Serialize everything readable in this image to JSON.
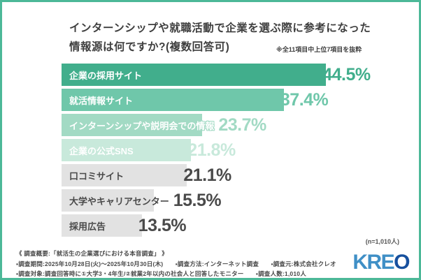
{
  "title": {
    "line1": "インターンシップや就職活動で企業を選ぶ際に参考になった",
    "line2": "情報源は何ですか?(複数回答可)",
    "note": "※全11項目中上位7項目を抜粋"
  },
  "chart_data": {
    "type": "bar",
    "orientation": "horizontal",
    "title": "インターンシップや就職活動で企業を選ぶ際に参考になった情報源は何ですか?(複数回答可)",
    "unit": "%",
    "xlim": [
      0,
      47
    ],
    "grid": false,
    "legend": "none",
    "categories": [
      "企業の採用サイト",
      "就活情報サイト",
      "インターンシップや説明会での情報",
      "企業の公式SNS",
      "口コミサイト",
      "大学やキャリアセンター",
      "採用広告"
    ],
    "values": [
      44.5,
      37.4,
      23.7,
      21.8,
      21.1,
      15.5,
      13.5
    ],
    "items": [
      {
        "label": "企業の採用サイト",
        "value": 44.5,
        "display": "44.5%",
        "bar_color": "#41AE8C",
        "value_color": "#41AE8C",
        "label_color": "#FFFFFF",
        "outlined": false
      },
      {
        "label": "就活情報サイト",
        "value": 37.4,
        "display": "37.4%",
        "bar_color": "#6FC7AA",
        "value_color": "#6FC7AA",
        "label_color": "#FFFFFF",
        "outlined": false
      },
      {
        "label": "インターンシップや説明会での情報",
        "value": 23.7,
        "display": "23.7%",
        "bar_color": "#A2DAC4",
        "value_color": "#A2DAC4",
        "label_color": "#FFFFFF",
        "outlined": true
      },
      {
        "label": "企業の公式SNS",
        "value": 21.8,
        "display": "21.8%",
        "bar_color": "#C8E9DB",
        "value_color": "#C8E9DB",
        "label_color": "#FFFFFF",
        "outlined": true
      },
      {
        "label": "口コミサイト",
        "value": 21.1,
        "display": "21.1%",
        "bar_color": "#E2E2E2",
        "value_color": "#4A4A4A",
        "label_color": "#4A4A4A",
        "outlined": false
      },
      {
        "label": "大学やキャリアセンター",
        "value": 15.5,
        "display": "15.5%",
        "bar_color": "#E2E2E2",
        "value_color": "#4A4A4A",
        "label_color": "#4A4A4A",
        "outlined": false
      },
      {
        "label": "採用広告",
        "value": 13.5,
        "display": "13.5%",
        "bar_color": "#E2E2E2",
        "value_color": "#4A4A4A",
        "label_color": "#4A4A4A",
        "outlined": false
      }
    ],
    "sample_note": "(n=1,010人)"
  },
  "footer": {
    "heading": "《 調査概要:「就活生の企業選びにおける本音調査」 》",
    "line2": "▪調査期間:2025年10月28日(火)〜2025年10月30日(木)　　▪調査方法:インターネット調査　　▪調査元:株式会社クレオ",
    "line3": "▪調査対象:調査回答時に①大学3・4年生/②就業2年以内の社会人と回答したモニター　　▪調査人数:1,010人"
  },
  "logo": {
    "text_light": "KRE",
    "text_bold": "O"
  },
  "colors": {
    "frame": "#4CB898",
    "title_text": "#3E3E3E",
    "footer_text": "#474747",
    "logo_light_blue": "#3F8FC6",
    "logo_dark_blue": "#17509E"
  }
}
